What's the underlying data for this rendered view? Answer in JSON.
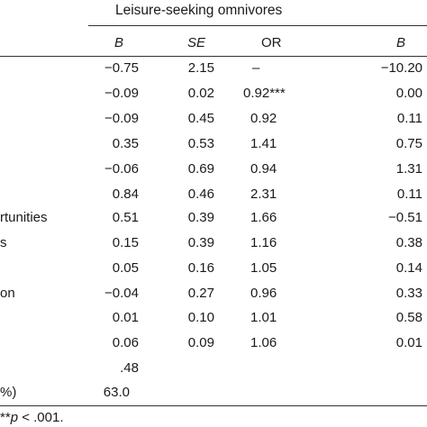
{
  "table": {
    "group_title": "Leisure-seeking omnivores",
    "col_headers": [
      "B",
      "SE",
      "OR",
      "B"
    ],
    "row_labels": [
      "",
      "",
      "",
      "",
      "",
      "",
      "rtunities",
      "s",
      "",
      "on",
      "",
      "",
      "",
      "%)"
    ],
    "rows": [
      {
        "b": "−0.75",
        "se": "2.15",
        "or": "–",
        "b2": "−10.20"
      },
      {
        "b": "−0.09",
        "se": "0.02",
        "or": "0.92***",
        "b2": "0.00"
      },
      {
        "b": "−0.09",
        "se": "0.45",
        "or": "0.92",
        "b2": "0.11"
      },
      {
        "b": "0.35",
        "se": "0.53",
        "or": "1.41",
        "b2": "0.75"
      },
      {
        "b": "−0.06",
        "se": "0.69",
        "or": "0.94",
        "b2": "1.31"
      },
      {
        "b": "0.84",
        "se": "0.46",
        "or": "2.31",
        "b2": "0.11"
      },
      {
        "b": "0.51",
        "se": "0.39",
        "or": "1.66",
        "b2": "−0.51"
      },
      {
        "b": "0.15",
        "se": "0.39",
        "or": "1.16",
        "b2": "0.38"
      },
      {
        "b": "0.05",
        "se": "0.16",
        "or": "1.05",
        "b2": "0.14"
      },
      {
        "b": "−0.04",
        "se": "0.27",
        "or": "0.96",
        "b2": "0.33"
      },
      {
        "b": "0.01",
        "se": "0.10",
        "or": "1.01",
        "b2": "0.58"
      },
      {
        "b": "0.06",
        "se": "0.09",
        "or": "1.06",
        "b2": "0.01"
      },
      {
        "b": ".48",
        "se": "",
        "or": "",
        "b2": ""
      },
      {
        "b": "63.0",
        "se": "",
        "or": "",
        "b2": ""
      }
    ],
    "footnote_prefix": "**",
    "footnote_p": "p",
    "footnote_rest": " < .001."
  }
}
